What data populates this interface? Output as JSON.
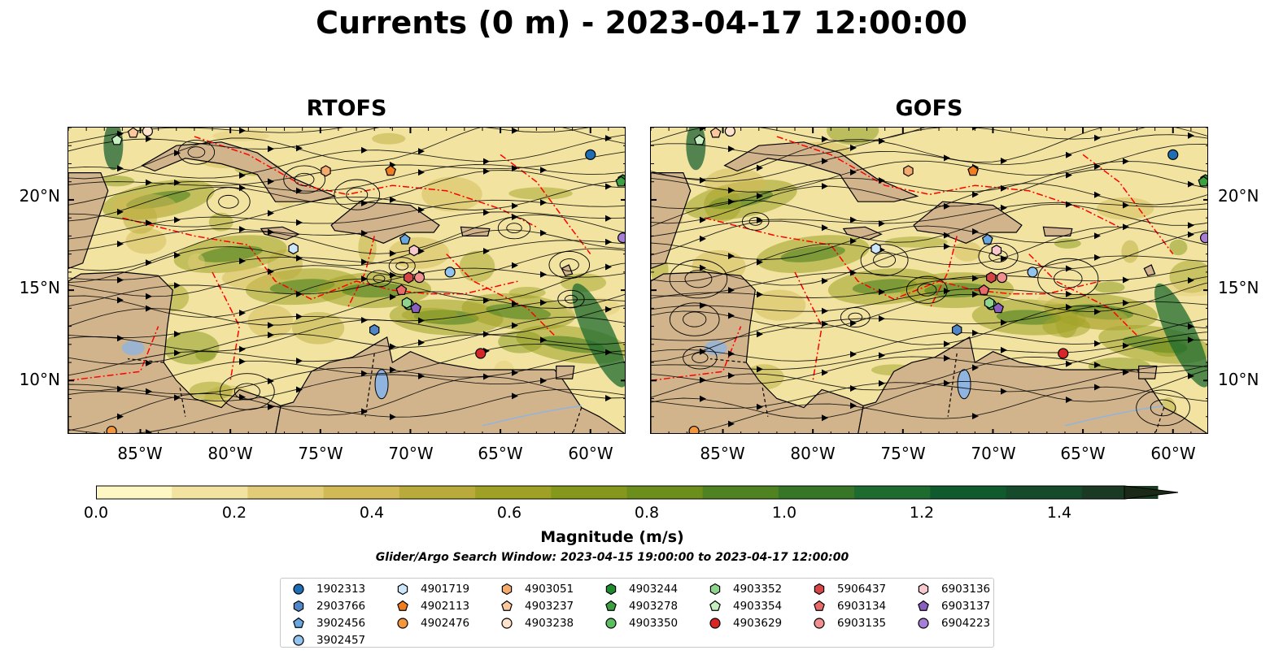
{
  "title": "Currents (0 m) - 2023-04-17 12:00:00",
  "panels": [
    {
      "title": "RTOFS"
    },
    {
      "title": "GOFS"
    }
  ],
  "lat_labels": [
    "20°N",
    "15°N",
    "10°N"
  ],
  "lon_labels": [
    "85°W",
    "80°W",
    "75°W",
    "70°W",
    "65°W",
    "60°W"
  ],
  "map_extent": {
    "lon": [
      -89,
      -58
    ],
    "lat": [
      7,
      24
    ]
  },
  "colors": {
    "land": "#d2b48c",
    "water_low": "#fef7c3",
    "water_high": "#1b2a18",
    "eez_line": "#ff0000",
    "lakes": "#8fb4e0",
    "streamlines": "#000000"
  },
  "colorbar": {
    "label": "Magnitude (m/s)",
    "ticks": [
      "0.0",
      "0.2",
      "0.4",
      "0.6",
      "0.8",
      "1.0",
      "1.2",
      "1.4"
    ],
    "range": [
      0,
      1.5
    ],
    "extend": "max",
    "colors": [
      "#fef7c3",
      "#f2e4a0",
      "#e2cc78",
      "#d1b956",
      "#b9ab3b",
      "#9fa126",
      "#85981b",
      "#6b8f1a",
      "#4f8220",
      "#377527",
      "#1e6b2f",
      "#0f5b2e",
      "#154a2a",
      "#1a3a24",
      "#1b2a18"
    ]
  },
  "search_window": "Glider/Argo Search Window: 2023-04-15 19:00:00 to 2023-04-17 12:00:00",
  "floats": [
    {
      "id": "1902313",
      "color": "#1f6eb4",
      "marker": "circle",
      "lon": -60,
      "lat": 22.5
    },
    {
      "id": "2903766",
      "color": "#4e86c8",
      "marker": "hexagon",
      "lon": -72,
      "lat": 12.8
    },
    {
      "id": "3902456",
      "color": "#6aa7e0",
      "marker": "pentagon",
      "lon": -70.3,
      "lat": 17.8
    },
    {
      "id": "3902457",
      "color": "#93c4ee",
      "marker": "circle",
      "lon": -67.8,
      "lat": 16.0
    },
    {
      "id": "4901719",
      "color": "#cce6fb",
      "marker": "hexagon",
      "lon": -76.5,
      "lat": 17.3
    },
    {
      "id": "4902113",
      "color": "#f07d1e",
      "marker": "pentagon",
      "lon": -71.1,
      "lat": 21.6
    },
    {
      "id": "4902476",
      "color": "#f4963c",
      "marker": "circle",
      "lon": -86.6,
      "lat": 7.2
    },
    {
      "id": "4903051",
      "color": "#f5ab6e",
      "marker": "hexagon",
      "lon": -74.7,
      "lat": 21.6
    },
    {
      "id": "4903237",
      "color": "#fac89c",
      "marker": "pentagon",
      "lon": -85.4,
      "lat": 23.7
    },
    {
      "id": "4903238",
      "color": "#fde3cc",
      "marker": "circle",
      "lon": -84.6,
      "lat": 23.8
    },
    {
      "id": "4903244",
      "color": "#1f8a2f",
      "marker": "hexagon",
      "lon": -58.2,
      "lat": 21.1
    },
    {
      "id": "4903278",
      "color": "#3d9e42",
      "marker": "pentagon",
      "lon": -58.3,
      "lat": 21.0
    },
    {
      "id": "4903350",
      "color": "#5cbe62",
      "marker": "circle",
      "lon": -70.1,
      "lat": 14.2
    },
    {
      "id": "4903352",
      "color": "#8fd48c",
      "marker": "hexagon",
      "lon": -70.2,
      "lat": 14.3
    },
    {
      "id": "4903354",
      "color": "#c6efc0",
      "marker": "pentagon",
      "lon": -86.3,
      "lat": 23.3
    },
    {
      "id": "4903629",
      "color": "#d62728",
      "marker": "circle",
      "lon": -66.1,
      "lat": 11.5
    },
    {
      "id": "5906437",
      "color": "#d64545",
      "marker": "hexagon",
      "lon": -70.1,
      "lat": 15.7
    },
    {
      "id": "6903134",
      "color": "#e86a6a",
      "marker": "pentagon",
      "lon": -70.5,
      "lat": 15.0
    },
    {
      "id": "6903135",
      "color": "#f09090",
      "marker": "circle",
      "lon": -69.5,
      "lat": 15.7
    },
    {
      "id": "6903136",
      "color": "#f8c8cc",
      "marker": "hexagon",
      "lon": -69.8,
      "lat": 17.2
    },
    {
      "id": "6903137",
      "color": "#8a5fc0",
      "marker": "pentagon",
      "lon": -69.7,
      "lat": 14.0
    },
    {
      "id": "6904223",
      "color": "#a67ed6",
      "marker": "circle",
      "lon": -58.2,
      "lat": 17.9
    }
  ]
}
